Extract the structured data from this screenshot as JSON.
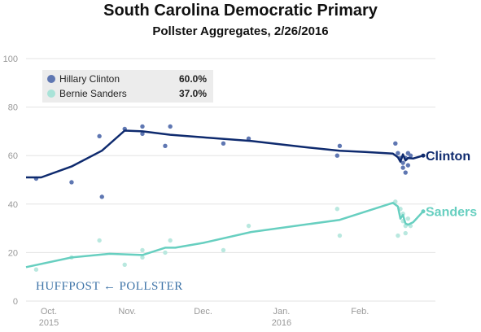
{
  "header": {
    "title": "South Carolina Democratic Primary",
    "subtitle": "Pollster Aggregates, 2/26/2016"
  },
  "watermark": {
    "left": "HUFFPOST",
    "right": "POLLSTER"
  },
  "colors": {
    "clinton": "#0e2a6e",
    "clinton_dots": "#5f77b2",
    "sanders": "#67cfc0",
    "sanders_dots": "#b9e8df",
    "grid": "#e3e3e3",
    "axis_text": "#999999"
  },
  "chart_data": {
    "type": "line",
    "title": "South Carolina Democratic Primary",
    "subtitle": "Pollster Aggregates, 2/26/2016",
    "xlabel": "",
    "ylabel": "",
    "ylim": [
      0,
      100
    ],
    "xlim": [
      "2015-09-22",
      "2016-02-26"
    ],
    "yticks": [
      0,
      20,
      40,
      60,
      80,
      100
    ],
    "xticks": [
      {
        "date": "2015-10-01",
        "label": "Oct.",
        "sublabel": "2015"
      },
      {
        "date": "2015-11-01",
        "label": "Nov.",
        "sublabel": ""
      },
      {
        "date": "2015-12-01",
        "label": "Dec.",
        "sublabel": ""
      },
      {
        "date": "2016-01-01",
        "label": "Jan.",
        "sublabel": "2016"
      },
      {
        "date": "2016-02-01",
        "label": "Feb.",
        "sublabel": ""
      }
    ],
    "grid": true,
    "legend": "top-left",
    "series": [
      {
        "name": "Hillary Clinton",
        "label": "Clinton",
        "current": "60.0%",
        "color": "#0e2a6e",
        "dot_color": "#5f77b2",
        "trend": [
          [
            "2015-09-22",
            51
          ],
          [
            "2015-09-28",
            51
          ],
          [
            "2015-10-10",
            55.5
          ],
          [
            "2015-10-22",
            62
          ],
          [
            "2015-10-31",
            70.3
          ],
          [
            "2015-11-07",
            70
          ],
          [
            "2015-11-18",
            68.6
          ],
          [
            "2015-12-01",
            67.5
          ],
          [
            "2015-12-20",
            66
          ],
          [
            "2016-01-10",
            63.5
          ],
          [
            "2016-01-24",
            62
          ],
          [
            "2016-02-03",
            61.5
          ],
          [
            "2016-02-14",
            60.8
          ],
          [
            "2016-02-16",
            59.3
          ],
          [
            "2016-02-17",
            57.5
          ],
          [
            "2016-02-18",
            60.5
          ],
          [
            "2016-02-19",
            58
          ],
          [
            "2016-02-20",
            59
          ],
          [
            "2016-02-22",
            58.8
          ],
          [
            "2016-02-26",
            60
          ]
        ],
        "polls": [
          [
            "2015-09-26",
            50.5
          ],
          [
            "2015-10-10",
            49
          ],
          [
            "2015-10-21",
            68
          ],
          [
            "2015-10-22",
            43
          ],
          [
            "2015-10-31",
            71
          ],
          [
            "2015-11-07",
            72
          ],
          [
            "2015-11-07",
            69
          ],
          [
            "2015-11-16",
            64
          ],
          [
            "2015-11-18",
            72
          ],
          [
            "2015-12-09",
            65
          ],
          [
            "2015-12-19",
            67
          ],
          [
            "2016-01-23",
            60
          ],
          [
            "2016-01-24",
            64
          ],
          [
            "2016-02-15",
            65
          ],
          [
            "2016-02-16",
            61
          ],
          [
            "2016-02-17",
            59
          ],
          [
            "2016-02-18",
            55
          ],
          [
            "2016-02-18",
            57
          ],
          [
            "2016-02-19",
            59
          ],
          [
            "2016-02-19",
            53
          ],
          [
            "2016-02-20",
            61
          ],
          [
            "2016-02-20",
            56
          ],
          [
            "2016-02-21",
            60
          ]
        ]
      },
      {
        "name": "Bernie Sanders",
        "label": "Sanders",
        "current": "37.0%",
        "color": "#67cfc0",
        "dot_color": "#b9e8df",
        "trend": [
          [
            "2015-09-22",
            14
          ],
          [
            "2015-10-10",
            18
          ],
          [
            "2015-10-25",
            19.5
          ],
          [
            "2015-11-07",
            19
          ],
          [
            "2015-11-16",
            22
          ],
          [
            "2015-11-20",
            22
          ],
          [
            "2015-12-01",
            24
          ],
          [
            "2015-12-20",
            28.5
          ],
          [
            "2016-01-24",
            33.5
          ],
          [
            "2016-02-14",
            40.5
          ],
          [
            "2016-02-16",
            39
          ],
          [
            "2016-02-17",
            34
          ],
          [
            "2016-02-18",
            35.5
          ],
          [
            "2016-02-19",
            32
          ],
          [
            "2016-02-20",
            31.5
          ],
          [
            "2016-02-22",
            32.5
          ],
          [
            "2016-02-26",
            37
          ]
        ],
        "polls": [
          [
            "2015-09-26",
            13
          ],
          [
            "2015-10-10",
            18
          ],
          [
            "2015-10-21",
            25
          ],
          [
            "2015-10-31",
            15
          ],
          [
            "2015-11-07",
            21
          ],
          [
            "2015-11-07",
            18
          ],
          [
            "2015-11-16",
            20
          ],
          [
            "2015-11-18",
            25
          ],
          [
            "2015-12-09",
            21
          ],
          [
            "2015-12-19",
            31
          ],
          [
            "2016-01-23",
            38
          ],
          [
            "2016-01-24",
            27
          ],
          [
            "2016-02-15",
            41
          ],
          [
            "2016-02-16",
            27
          ],
          [
            "2016-02-17",
            38
          ],
          [
            "2016-02-18",
            36
          ],
          [
            "2016-02-18",
            33
          ],
          [
            "2016-02-19",
            31
          ],
          [
            "2016-02-19",
            28
          ],
          [
            "2016-02-20",
            34
          ],
          [
            "2016-02-21",
            31
          ]
        ]
      }
    ]
  }
}
